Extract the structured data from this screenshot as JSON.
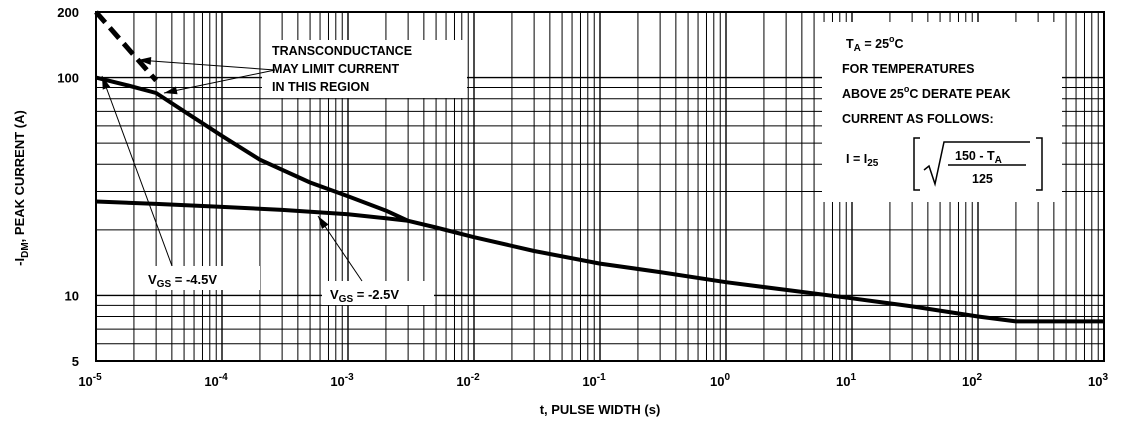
{
  "chart_data": {
    "type": "line",
    "title": "",
    "xlabel": "t, PULSE WIDTH (s)",
    "ylabel": "-I₂ₘ, PEAK CURRENT (A)",
    "ylabel_parts": {
      "main": "-I",
      "sub": "DM",
      "rest": ", PEAK CURRENT (A)"
    },
    "x_scale": "log",
    "y_scale": "log",
    "xlim": [
      1e-05,
      1000
    ],
    "ylim": [
      5,
      200
    ],
    "grid": true,
    "x_ticks": [
      {
        "base": "10",
        "exp": "-5"
      },
      {
        "base": "10",
        "exp": "-4"
      },
      {
        "base": "10",
        "exp": "-3"
      },
      {
        "base": "10",
        "exp": "-2"
      },
      {
        "base": "10",
        "exp": "-1"
      },
      {
        "base": "10",
        "exp": "0"
      },
      {
        "base": "10",
        "exp": "1"
      },
      {
        "base": "10",
        "exp": "2"
      },
      {
        "base": "10",
        "exp": "3"
      }
    ],
    "y_ticks": [
      "200",
      "100",
      "10",
      "5"
    ],
    "series": [
      {
        "name": "VGS = -4.5V",
        "label_parts": {
          "main": "V",
          "sub": "GS",
          "rest": " = -4.5V"
        },
        "x": [
          1e-05,
          1.8e-05,
          3e-05,
          5e-05,
          0.0001,
          0.0002,
          0.0005,
          0.001,
          0.002,
          0.003,
          0.005,
          0.01,
          0.03,
          0.1,
          0.3,
          1,
          3,
          10,
          30,
          100,
          200,
          1000
        ],
        "y": [
          100,
          92,
          85,
          70,
          54,
          42,
          33,
          28.5,
          24.5,
          22,
          20.5,
          18.5,
          16,
          14,
          12.8,
          11.5,
          10.6,
          9.7,
          8.9,
          8,
          7.6,
          7.6
        ]
      },
      {
        "name": "VGS = -2.5V",
        "label_parts": {
          "main": "V",
          "sub": "GS",
          "rest": " = -2.5V"
        },
        "x": [
          1e-05,
          3e-05,
          0.0001,
          0.0003,
          0.001,
          0.002,
          0.003
        ],
        "y": [
          27,
          26.3,
          25.5,
          24.7,
          23.6,
          22.6,
          22
        ]
      },
      {
        "name": "transconductance limit",
        "dashed": true,
        "x": [
          1e-05,
          3e-05
        ],
        "y": [
          200,
          97
        ]
      }
    ],
    "annotations": [
      {
        "id": "transconductance",
        "lines": [
          "TRANSCONDUCTANCE",
          "MAY LIMIT CURRENT",
          "IN THIS REGION"
        ]
      }
    ],
    "derating_note": {
      "ta_main": "T",
      "ta_sub": "A",
      "ta_rest": " = 25",
      "ta_sup": "o",
      "ta_unit": "C",
      "line2": "FOR TEMPERATURES",
      "line3_main": "ABOVE 25",
      "line3_sup": "o",
      "line3_rest": "C DERATE PEAK",
      "line4": "CURRENT AS FOLLOWS:",
      "formula_lhs_main": "I = I",
      "formula_lhs_sub": "25",
      "numerator_main": "150 - T",
      "numerator_sub": "A",
      "denominator": "125"
    }
  }
}
